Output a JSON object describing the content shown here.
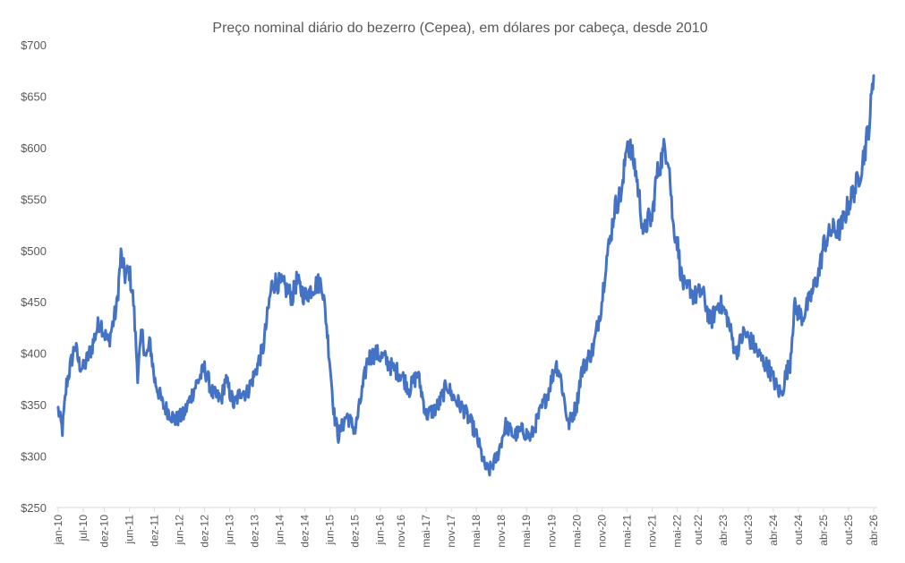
{
  "chart_data": {
    "type": "line",
    "title": "Preço nominal diário do bezerro (Cepea), em dólares por cabeça, desde 2010",
    "xlabel": "",
    "ylabel": "",
    "ylim": [
      250,
      700
    ],
    "ytick_labels": [
      "$250",
      "$300",
      "$350",
      "$400",
      "$450",
      "$500",
      "$550",
      "$600",
      "$650",
      "$700"
    ],
    "xtick_labels": [
      "jan-10",
      "jul-10",
      "dez-10",
      "jun-11",
      "dez-11",
      "jun-12",
      "dez-12",
      "jun-13",
      "dez-13",
      "jun-14",
      "dez-14",
      "jun-15",
      "dez-15",
      "jun-16",
      "nov-16",
      "mai-17",
      "nov-17",
      "mai-18",
      "nov-18",
      "mai-19",
      "nov-19",
      "mai-20",
      "nov-20",
      "mai-21",
      "nov-21",
      "mai-22",
      "out-22",
      "abr-23",
      "out-23",
      "abr-24",
      "out-24",
      "abr-25",
      "out-25",
      "abr-26"
    ],
    "grid": false,
    "legend": "none",
    "line_color": "#4472C4",
    "series": [
      {
        "x": [
          "2010-01",
          "2010-02",
          "2010-03",
          "2010-05",
          "2010-06",
          "2010-07",
          "2010-09",
          "2010-10",
          "2010-11",
          "2010-12",
          "2011-01",
          "2011-03",
          "2011-04",
          "2011-05",
          "2011-06",
          "2011-07",
          "2011-08",
          "2011-09",
          "2011-10",
          "2011-11",
          "2011-12",
          "2012-02",
          "2012-04",
          "2012-05",
          "2012-07",
          "2012-09",
          "2012-10",
          "2012-12",
          "2013-02",
          "2013-04",
          "2013-05",
          "2013-07",
          "2013-09",
          "2013-10",
          "2013-12",
          "2014-02",
          "2014-04",
          "2014-05",
          "2014-07",
          "2014-09",
          "2014-10",
          "2014-12",
          "2015-02",
          "2015-04",
          "2015-05",
          "2015-06",
          "2015-07",
          "2015-08",
          "2015-10",
          "2015-12",
          "2016-02",
          "2016-03",
          "2016-05",
          "2016-07",
          "2016-09",
          "2016-11",
          "2017-01",
          "2017-03",
          "2017-05",
          "2017-07",
          "2017-08",
          "2017-10",
          "2017-11",
          "2018-01",
          "2018-02",
          "2018-04",
          "2018-05",
          "2018-07",
          "2018-08",
          "2018-10",
          "2018-12",
          "2019-02",
          "2019-04",
          "2019-06",
          "2019-08",
          "2019-10",
          "2019-12",
          "2020-01",
          "2020-03",
          "2020-04",
          "2020-05",
          "2020-06",
          "2020-07",
          "2020-09",
          "2020-11",
          "2020-12",
          "2021-01",
          "2021-02",
          "2021-04",
          "2021-05",
          "2021-06",
          "2021-07",
          "2021-08",
          "2021-09",
          "2021-10",
          "2021-11",
          "2021-12",
          "2022-02",
          "2022-03",
          "2022-04",
          "2022-05",
          "2022-06",
          "2022-07",
          "2022-08",
          "2022-09",
          "2022-11",
          "2023-01",
          "2023-03",
          "2023-05",
          "2023-07",
          "2023-09",
          "2023-11",
          "2024-01",
          "2024-03",
          "2024-05",
          "2024-06",
          "2024-07",
          "2024-08",
          "2024-09",
          "2024-11",
          "2025-01",
          "2025-03",
          "2025-04",
          "2025-06",
          "2025-08",
          "2025-10",
          "2025-11",
          "2025-12",
          "2026-01",
          "2026-02",
          "2026-03",
          "2026-04"
        ],
        "values": [
          345,
          325,
          370,
          408,
          390,
          385,
          405,
          420,
          432,
          420,
          410,
          445,
          495,
          475,
          480,
          450,
          380,
          420,
          395,
          410,
          375,
          350,
          340,
          335,
          340,
          360,
          370,
          385,
          360,
          355,
          375,
          350,
          365,
          360,
          380,
          405,
          465,
          470,
          465,
          455,
          470,
          455,
          465,
          470,
          435,
          390,
          340,
          320,
          340,
          325,
          370,
          395,
          400,
          395,
          385,
          380,
          365,
          380,
          340,
          345,
          350,
          370,
          360,
          350,
          345,
          330,
          320,
          290,
          285,
          300,
          330,
          320,
          325,
          318,
          340,
          360,
          390,
          380,
          330,
          340,
          350,
          380,
          390,
          405,
          450,
          490,
          510,
          540,
          560,
          610,
          595,
          580,
          550,
          515,
          530,
          530,
          570,
          600,
          590,
          525,
          510,
          475,
          460,
          465,
          455,
          460,
          430,
          450,
          435,
          400,
          420,
          410,
          395,
          385,
          365,
          360,
          380,
          390,
          445,
          435,
          455,
          480,
          505,
          520,
          520,
          545,
          555,
          565,
          580,
          600,
          625,
          670
        ]
      }
    ]
  }
}
